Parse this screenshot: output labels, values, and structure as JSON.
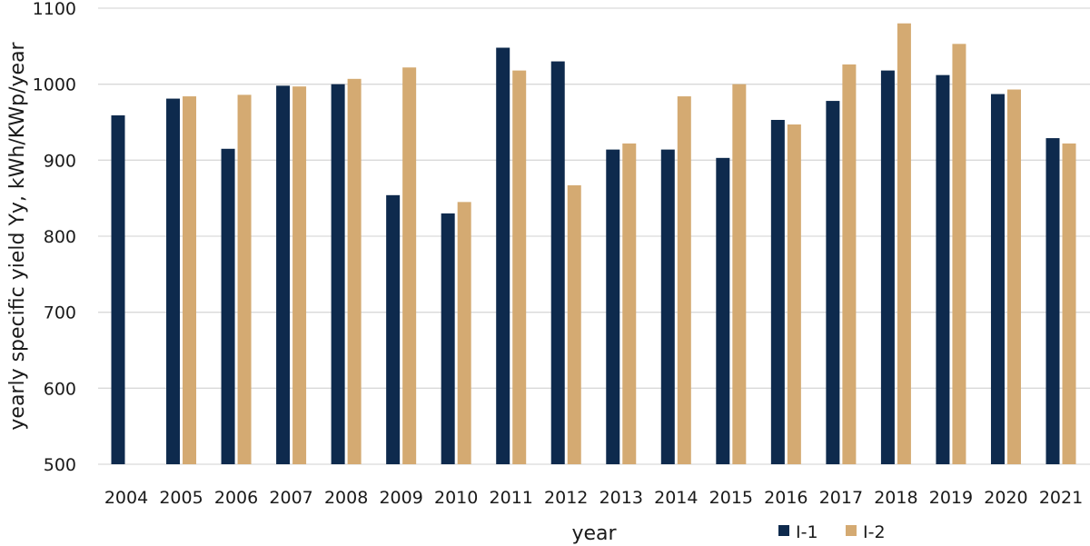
{
  "chart_data": {
    "type": "bar",
    "title": "",
    "xlabel": "year",
    "ylabel": "yearly specific yield Yy, kWh/KWp/year",
    "ylim": [
      500,
      1100
    ],
    "yticks": [
      500,
      600,
      700,
      800,
      900,
      1000,
      1100
    ],
    "grid": true,
    "legend_position": "bottom-right",
    "categories": [
      "2004",
      "2005",
      "2006",
      "2007",
      "2008",
      "2009",
      "2010",
      "2011",
      "2012",
      "2013",
      "2014",
      "2015",
      "2016",
      "2017",
      "2018",
      "2019",
      "2020",
      "2021"
    ],
    "series": [
      {
        "name": "I-1",
        "color": "#0e2a4d",
        "values": [
          959,
          981,
          915,
          998,
          1000,
          854,
          830,
          1048,
          1030,
          914,
          914,
          903,
          953,
          978,
          1018,
          1012,
          987,
          929
        ]
      },
      {
        "name": "I-2",
        "color": "#d4aa72",
        "values": [
          null,
          984,
          986,
          997,
          1007,
          1022,
          845,
          1018,
          867,
          922,
          984,
          1000,
          947,
          1026,
          1080,
          1053,
          993,
          922
        ]
      }
    ]
  }
}
